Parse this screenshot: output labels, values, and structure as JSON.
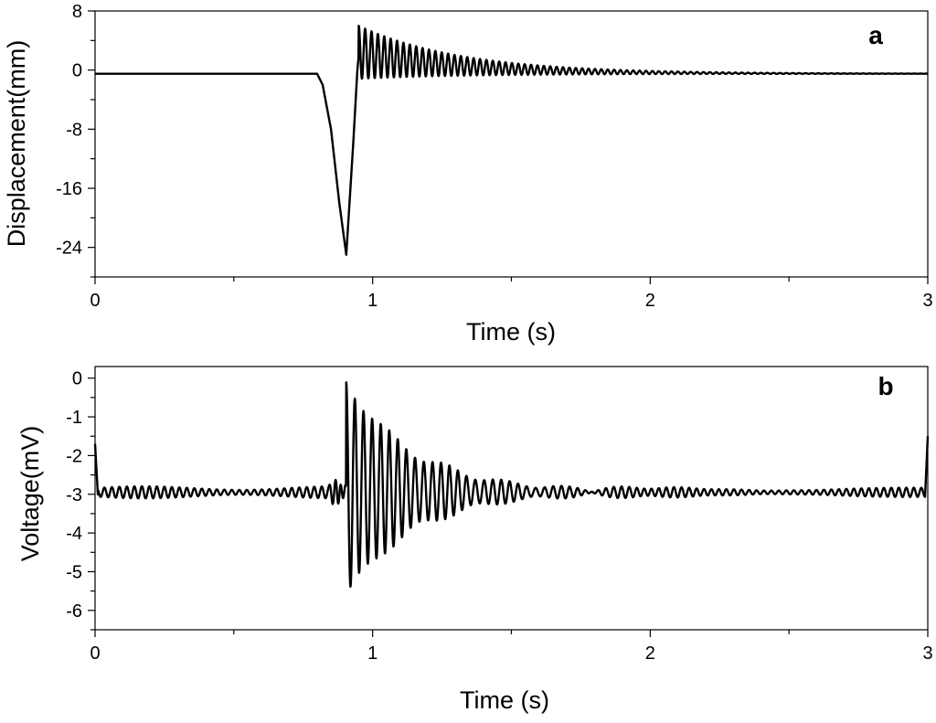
{
  "chart_data": [
    {
      "type": "line",
      "panel_label": "a",
      "xlabel": "Time  (s)",
      "ylabel": "Displacement(mm)",
      "xlim": [
        0,
        3
      ],
      "ylim": [
        -28,
        8
      ],
      "xticks": [
        0,
        1,
        2,
        3
      ],
      "xtick_labels": [
        "0",
        "1",
        "2",
        "3"
      ],
      "yticks": [
        8,
        0,
        -8,
        -16,
        -24
      ],
      "ytick_labels": [
        "8",
        "0",
        "-8",
        "-16",
        "-24"
      ],
      "grid": false,
      "line_color": "#000000",
      "series": [
        {
          "x": [
            0,
            0.8,
            0.82,
            0.85,
            0.88,
            0.905,
            0.93,
            0.945,
            0.96,
            1.0,
            1.1,
            1.2,
            1.3,
            1.4,
            1.5,
            1.7,
            2.0,
            2.5,
            3.0
          ],
          "y": [
            -0.5,
            -0.5,
            -2,
            -8,
            -18,
            -25,
            -10,
            0,
            6,
            5,
            3.5,
            2.3,
            1.4,
            0.8,
            0.4,
            0,
            -0.3,
            -0.5,
            -0.5
          ],
          "note_oscillation": {
            "start": 0.95,
            "period": 0.023,
            "baseline": -0.5,
            "peak_upper": 6,
            "peak_lower": -1.2,
            "decay": 2.7
          }
        }
      ]
    },
    {
      "type": "line",
      "panel_label": "b",
      "xlabel": "Time  (s)",
      "ylabel": "Voltage(mV)",
      "xlim": [
        0,
        3
      ],
      "ylim": [
        -6.5,
        0.3
      ],
      "xticks": [
        0,
        1,
        2,
        3
      ],
      "xtick_labels": [
        "0",
        "1",
        "2",
        "3"
      ],
      "yticks": [
        0,
        -1,
        -2,
        -3,
        -4,
        -5,
        -6
      ],
      "ytick_labels": [
        "0",
        "-1",
        "-2",
        "-3",
        "-4",
        "-5",
        "-6"
      ],
      "grid": false,
      "line_color": "#000000",
      "series": [
        {
          "x": [
            0,
            0.01,
            0.5,
            0.88,
            0.91,
            0.93,
            0.96,
            1.0,
            1.1,
            1.2,
            1.3,
            1.4,
            1.5,
            1.6,
            2.0,
            2.5,
            2.99,
            3.0
          ],
          "y": [
            -1.7,
            -3.0,
            -2.9,
            -2.9,
            -0.2,
            -5.8,
            -0.5,
            -1.3,
            -1.5,
            -2.0,
            -2.1,
            -2.3,
            -2.5,
            -2.6,
            -2.9,
            -2.9,
            -3.1,
            -1.5
          ],
          "note_oscillation": {
            "start": 0.905,
            "period": 0.031,
            "baseline": -2.95,
            "amplitude_start": 2.75,
            "decay": 4.2,
            "noise_amplitude": 0.12
          }
        }
      ]
    }
  ]
}
